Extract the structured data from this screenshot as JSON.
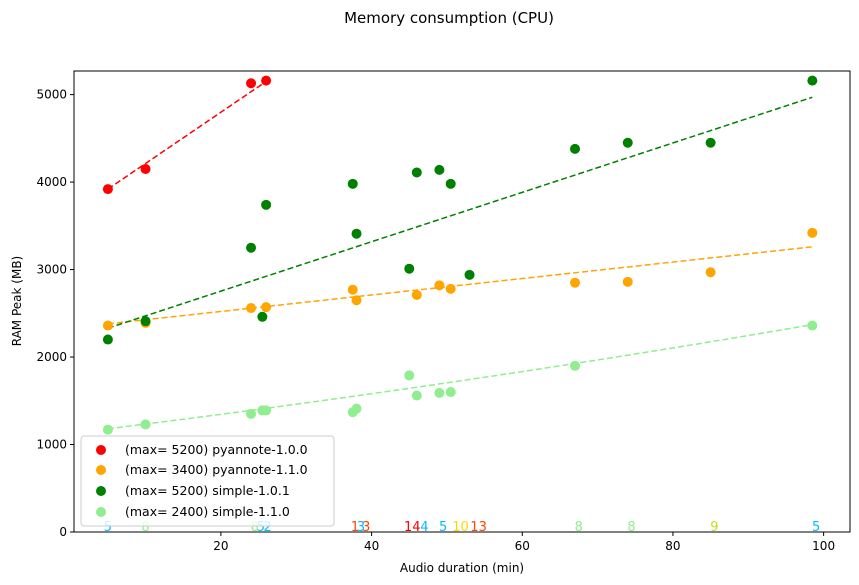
{
  "chart_data": {
    "type": "scatter",
    "title": "Memory consumption (CPU)",
    "xlabel": "Audio duration (min)",
    "ylabel": "RAM Peak (MB)",
    "xlim": [
      0.5,
      103.5
    ],
    "ylim": [
      0,
      5270
    ],
    "xticks": [
      20,
      40,
      60,
      80,
      100
    ],
    "yticks": [
      0,
      1000,
      2000,
      3000,
      4000,
      5000
    ],
    "grid": false,
    "legend_position": "lower-left",
    "series": [
      {
        "name": "(max= 5200) pyannote-1.0.0",
        "color": "#ff0000",
        "x": [
          5,
          10,
          24,
          26
        ],
        "y": [
          3920,
          4150,
          5130,
          5160
        ],
        "fit": {
          "x": [
            5,
            26
          ],
          "y": [
            3920,
            5150
          ]
        }
      },
      {
        "name": "(max= 3400) pyannote-1.1.0",
        "color": "#ffa500",
        "x": [
          5,
          10,
          24,
          26,
          37.5,
          38,
          46,
          49,
          50.5,
          67,
          74,
          85,
          98.5
        ],
        "y": [
          2360,
          2390,
          2560,
          2570,
          2770,
          2650,
          2710,
          2820,
          2780,
          2850,
          2860,
          2970,
          3420
        ],
        "fit": {
          "x": [
            5,
            98.5
          ],
          "y": [
            2380,
            3260
          ]
        }
      },
      {
        "name": "(max= 5200) simple-1.0.1",
        "color": "#008000",
        "x": [
          5,
          10,
          24,
          25.5,
          26,
          37.5,
          38,
          45,
          46,
          49,
          50.5,
          53,
          67,
          74,
          85,
          98.5
        ],
        "y": [
          2200,
          2410,
          3250,
          2460,
          3740,
          3980,
          3410,
          3010,
          4110,
          4140,
          3980,
          2940,
          4380,
          4450,
          4450,
          5160
        ],
        "fit": {
          "x": [
            5,
            98.5
          ],
          "y": [
            2330,
            4970
          ]
        }
      },
      {
        "name": "(max= 2400) simple-1.1.0",
        "color": "#90ee90",
        "x": [
          5,
          10,
          24,
          25.5,
          26,
          37.5,
          38,
          45,
          46,
          49,
          50.5,
          67,
          98.5
        ],
        "y": [
          1170,
          1230,
          1350,
          1390,
          1390,
          1370,
          1410,
          1790,
          1560,
          1590,
          1600,
          1900,
          2360
        ],
        "fit": {
          "x": [
            5,
            98.5
          ],
          "y": [
            1180,
            2370
          ],
          "curve": true
        }
      }
    ],
    "annotations": [
      {
        "x": 5,
        "text": "5",
        "color": "#00bfff"
      },
      {
        "x": 10,
        "text": "8",
        "color": "#90ee90"
      },
      {
        "x": 24.5,
        "text": "8",
        "color": "#90ee90"
      },
      {
        "x": 25.3,
        "text": "5",
        "color": "#00bfff"
      },
      {
        "x": 26.2,
        "text": "2",
        "color": "#00bfff"
      },
      {
        "x": 37.8,
        "text": "1",
        "color": "#ff4500"
      },
      {
        "x": 38.6,
        "text": "3",
        "color": "#00bfff"
      },
      {
        "x": 39.3,
        "text": "3",
        "color": "#ff4500"
      },
      {
        "x": 45.4,
        "text": "14",
        "color": "#ff0000"
      },
      {
        "x": 47.0,
        "text": "4",
        "color": "#00bfff"
      },
      {
        "x": 49.5,
        "text": "5",
        "color": "#00bfff"
      },
      {
        "x": 51.8,
        "text": "10",
        "color": "#ffd700"
      },
      {
        "x": 54.2,
        "text": "13",
        "color": "#ff4500"
      },
      {
        "x": 67.5,
        "text": "8",
        "color": "#90ee90"
      },
      {
        "x": 74.5,
        "text": "8",
        "color": "#90ee90"
      },
      {
        "x": 85.5,
        "text": "9",
        "color": "#c0e020"
      },
      {
        "x": 99.0,
        "text": "5",
        "color": "#00bfff"
      }
    ]
  }
}
